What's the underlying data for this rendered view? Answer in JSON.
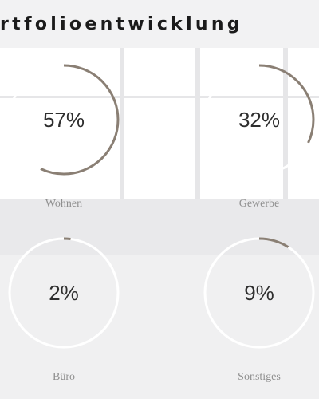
{
  "section": {
    "title": "rtfolioentwicklung"
  },
  "stats": [
    {
      "value_label": "57%",
      "percent": 57,
      "label": "Wohnen"
    },
    {
      "value_label": "32%",
      "percent": 32,
      "label": "Gewerbe"
    },
    {
      "value_label": "2%",
      "percent": 2,
      "label": "Büro"
    },
    {
      "value_label": "9%",
      "percent": 9,
      "label": "Sonstiges"
    }
  ],
  "colors": {
    "ring_progress": "#8a7f74",
    "ring_track": "#ffffff"
  }
}
